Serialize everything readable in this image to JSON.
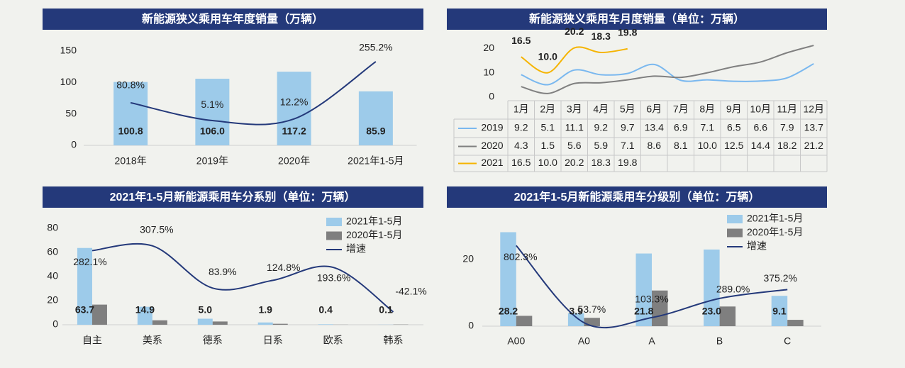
{
  "chart_data": [
    {
      "type": "bar",
      "title": "新能源狭义乘用车年度销量（万辆）",
      "categories": [
        "2018年",
        "2019年",
        "2020年",
        "2021年1-5月"
      ],
      "series": [
        {
          "color": "#9dcbea",
          "values": [
            100.8,
            106.0,
            117.2,
            85.9
          ],
          "value_labels": [
            "100.8",
            "106.0",
            "117.2",
            "85.9"
          ]
        },
        {
          "color": "#24397a",
          "axis": "y2",
          "values": [
            80.8,
            5.1,
            12.2,
            255.2
          ],
          "value_labels": [
            "80.8%",
            "5.1%",
            "12.2%",
            "255.2%"
          ]
        }
      ],
      "ylim": [
        0,
        150
      ],
      "yticks": [
        0,
        50,
        100,
        150
      ],
      "y2lim": [
        -100,
        300
      ],
      "grid": false
    },
    {
      "type": "line",
      "title": "新能源狭义乘用车月度销量（单位：万辆）",
      "categories": [
        "1月",
        "2月",
        "3月",
        "4月",
        "5月",
        "6月",
        "7月",
        "8月",
        "9月",
        "10月",
        "11月",
        "12月"
      ],
      "series": [
        {
          "name": "2019",
          "color": "#7ab8ef",
          "values": [
            9.2,
            5.1,
            11.1,
            9.2,
            9.7,
            13.4,
            6.9,
            7.1,
            6.5,
            6.6,
            7.9,
            13.7
          ],
          "value_labels": [
            "9.2",
            "5.1",
            "11.1",
            "9.2",
            "9.7",
            "13.4",
            "6.9",
            "7.1",
            "6.5",
            "6.6",
            "7.9",
            "13.7"
          ]
        },
        {
          "name": "2020",
          "color": "#808080",
          "values": [
            4.3,
            1.5,
            5.6,
            5.9,
            7.1,
            8.6,
            8.1,
            10.0,
            12.5,
            14.4,
            18.2,
            21.2
          ],
          "value_labels": [
            "4.3",
            "1.5",
            "5.6",
            "5.9",
            "7.1",
            "8.6",
            "8.1",
            "10.0",
            "12.5",
            "14.4",
            "18.2",
            "21.2"
          ]
        },
        {
          "name": "2021",
          "color": "#f5b400",
          "values": [
            16.5,
            10.0,
            20.2,
            18.3,
            19.8,
            null,
            null,
            null,
            null,
            null,
            null,
            null
          ],
          "value_labels": [
            "16.5",
            "10.0",
            "20.2",
            "18.3",
            "19.8",
            null,
            null,
            null,
            null,
            null,
            null,
            null
          ]
        }
      ],
      "ylim": [
        0,
        25
      ],
      "yticks": [
        0,
        10,
        20
      ],
      "grid": false
    },
    {
      "type": "bar",
      "title": "2021年1-5月新能源乘用车分系别（单位：万辆）",
      "categories": [
        "自主",
        "美系",
        "德系",
        "日系",
        "欧系",
        "韩系"
      ],
      "series": [
        {
          "name": "2021年1-5月",
          "color": "#9dcbea",
          "values": [
            63.7,
            14.9,
            5.0,
            1.9,
            0.4,
            0.1
          ],
          "value_labels": [
            "63.7",
            "14.9",
            "5.0",
            "1.9",
            "0.4",
            "0.1"
          ]
        },
        {
          "name": "2020年1-5月",
          "color": "#7f7f7f",
          "values": [
            16.7,
            3.7,
            2.7,
            0.8,
            0.1,
            0.2
          ]
        },
        {
          "name": "增速",
          "color": "#24397a",
          "axis": "y2",
          "values": [
            282.1,
            307.5,
            83.9,
            124.8,
            193.6,
            -42.1
          ],
          "value_labels": [
            "282.1%",
            "307.5%",
            "83.9%",
            "124.8%",
            "193.6%",
            "-42.1%"
          ]
        }
      ],
      "ylim": [
        0,
        80
      ],
      "yticks": [
        0,
        20,
        40,
        60,
        80
      ],
      "y2lim": [
        -110,
        400
      ],
      "grid": false,
      "legend": "upper right"
    },
    {
      "type": "bar",
      "title": "2021年1-5月新能源乘用车分级别（单位：万辆）",
      "categories": [
        "A00",
        "A0",
        "A",
        "B",
        "C"
      ],
      "series": [
        {
          "name": "2021年1-5月",
          "color": "#9dcbea",
          "values": [
            28.2,
            3.9,
            21.8,
            23.0,
            9.1
          ],
          "value_labels": [
            "28.2",
            "3.9",
            "21.8",
            "23.0",
            "9.1"
          ]
        },
        {
          "name": "2020年1-5月",
          "color": "#7f7f7f",
          "values": [
            3.1,
            2.5,
            10.7,
            5.9,
            1.9
          ]
        },
        {
          "name": "增速",
          "color": "#24397a",
          "axis": "y2",
          "values": [
            802.3,
            53.7,
            103.3,
            289.0,
            375.2
          ],
          "value_labels": [
            "802.3%",
            "53.7%",
            "103.3%",
            "289.0%",
            "375.2%"
          ]
        }
      ],
      "ylim": [
        0,
        30
      ],
      "yticks": [
        0,
        20
      ],
      "y2lim": [
        20,
        990
      ],
      "grid": false,
      "legend": "upper right"
    }
  ]
}
